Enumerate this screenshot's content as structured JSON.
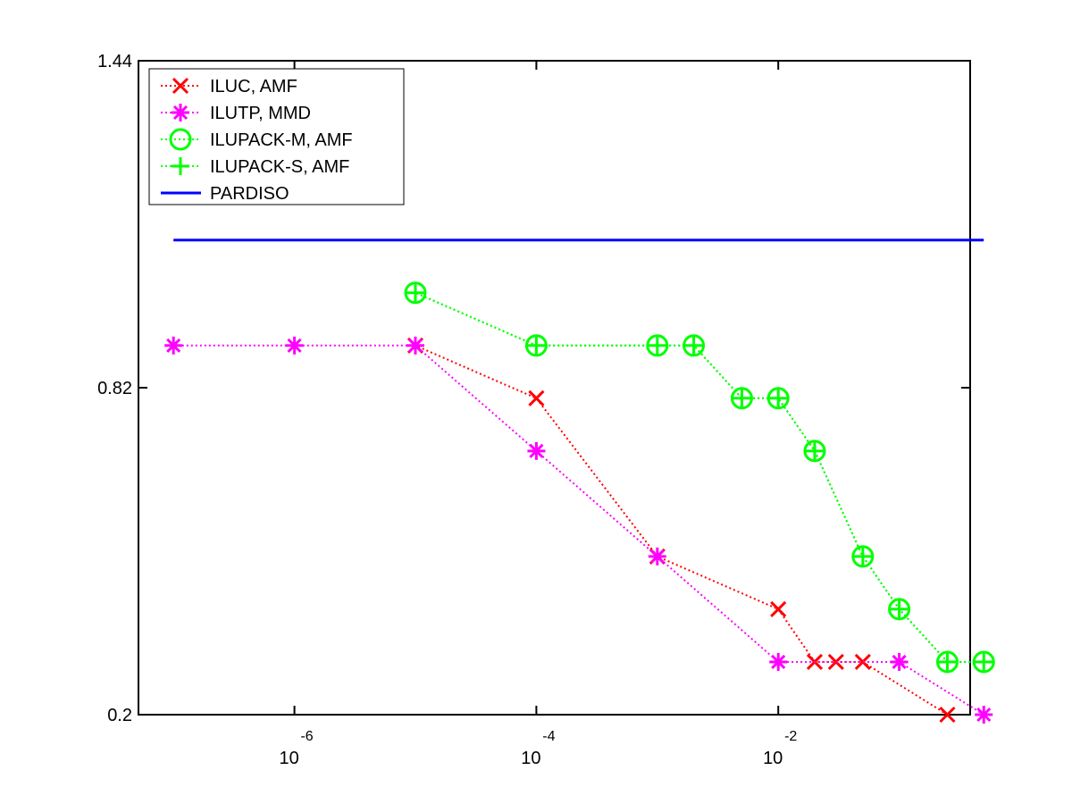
{
  "chart_data": {
    "type": "line",
    "xscale": "log",
    "xdirection": "decreasing",
    "x_ticks": [
      {
        "value": 0.01,
        "base": "10",
        "exp": "-2"
      },
      {
        "value": 0.0001,
        "base": "10",
        "exp": "-4"
      },
      {
        "value": 1e-06,
        "base": "10",
        "exp": "-6"
      }
    ],
    "y_ticks": [
      {
        "value": 0.2,
        "label": "0.2"
      },
      {
        "value": 0.82,
        "label": "0.82"
      },
      {
        "value": 1.44,
        "label": "1.44"
      }
    ],
    "xlim": [
      0.5,
      1e-07
    ],
    "ylim": [
      0.2,
      1.44
    ],
    "grid": false,
    "legend_position": "top-left",
    "series": [
      {
        "name": "ILUC, AMF",
        "color": "#ff0000",
        "marker": "x",
        "linestyle": "dotted",
        "points": [
          [
            0.25,
            0.2
          ],
          [
            0.05,
            0.3
          ],
          [
            0.03,
            0.3
          ],
          [
            0.02,
            0.3
          ],
          [
            0.01,
            0.4
          ],
          [
            0.001,
            0.5
          ],
          [
            0.0001,
            0.8
          ],
          [
            1e-05,
            0.9
          ]
        ]
      },
      {
        "name": "ILUTP, MMD",
        "color": "#ff00ff",
        "marker": "asterisk",
        "linestyle": "dotted",
        "points": [
          [
            0.5,
            0.2
          ],
          [
            0.1,
            0.3
          ],
          [
            0.01,
            0.3
          ],
          [
            0.001,
            0.5
          ],
          [
            0.0001,
            0.7
          ],
          [
            1e-05,
            0.9
          ],
          [
            1e-06,
            0.9
          ],
          [
            1e-07,
            0.9
          ]
        ]
      },
      {
        "name": "ILUPACK-M, AMF",
        "color": "#00ff00",
        "marker": "circle",
        "linestyle": "dotted",
        "points": [
          [
            0.5,
            0.3
          ],
          [
            0.25,
            0.3
          ],
          [
            0.1,
            0.4
          ],
          [
            0.05,
            0.5
          ],
          [
            0.02,
            0.7
          ],
          [
            0.01,
            0.8
          ],
          [
            0.005,
            0.8
          ],
          [
            0.002,
            0.9
          ],
          [
            0.001,
            0.9
          ],
          [
            0.0001,
            0.9
          ],
          [
            1e-05,
            1.0
          ]
        ]
      },
      {
        "name": "ILUPACK-S, AMF",
        "color": "#00ff00",
        "marker": "plus",
        "linestyle": "dotted",
        "points": [
          [
            0.5,
            0.3
          ],
          [
            0.25,
            0.3
          ],
          [
            0.1,
            0.4
          ],
          [
            0.05,
            0.5
          ],
          [
            0.02,
            0.7
          ],
          [
            0.01,
            0.8
          ],
          [
            0.005,
            0.8
          ],
          [
            0.002,
            0.9
          ],
          [
            0.001,
            0.9
          ],
          [
            0.0001,
            0.9
          ],
          [
            1e-05,
            1.0
          ]
        ]
      },
      {
        "name": "PARDISO",
        "color": "#0000ff",
        "marker": "none",
        "linestyle": "solid",
        "points": [
          [
            0.5,
            1.1
          ],
          [
            1e-07,
            1.1
          ]
        ]
      }
    ]
  }
}
